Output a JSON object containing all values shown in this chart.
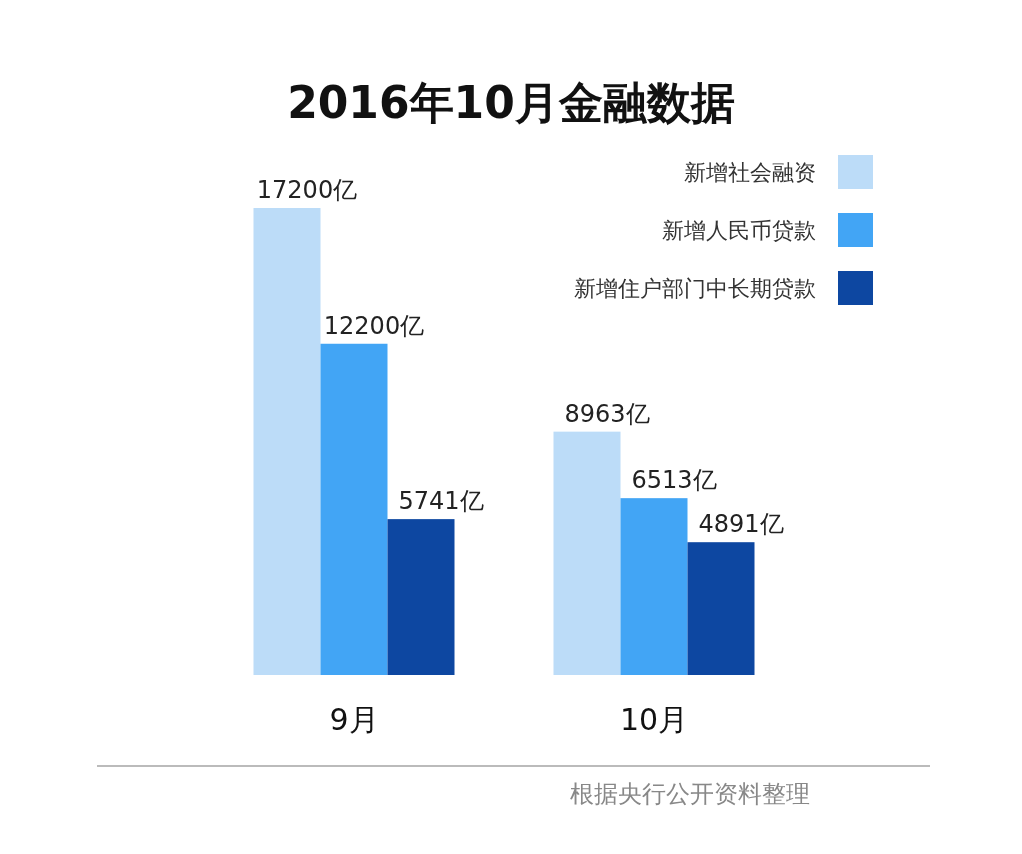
{
  "chart_data": {
    "type": "bar",
    "title": "2016年10月金融数据",
    "categories": [
      "9月",
      "10月"
    ],
    "series": [
      {
        "name": "新增社会融资",
        "color": "#bcdcf8",
        "values": [
          17200,
          8963
        ],
        "value_labels": [
          "17200亿",
          "8963亿"
        ]
      },
      {
        "name": "新增人民币贷款",
        "color": "#42a5f5",
        "values": [
          12200,
          6513
        ],
        "value_labels": [
          "12200亿",
          "6513亿"
        ]
      },
      {
        "name": "新增住户部门中长期贷款",
        "color": "#0d47a1",
        "values": [
          5741,
          4891
        ],
        "value_labels": [
          "5741亿",
          "4891亿"
        ]
      }
    ],
    "legend": "top right",
    "annotations": [
      "根据央行公开资料整理"
    ]
  }
}
